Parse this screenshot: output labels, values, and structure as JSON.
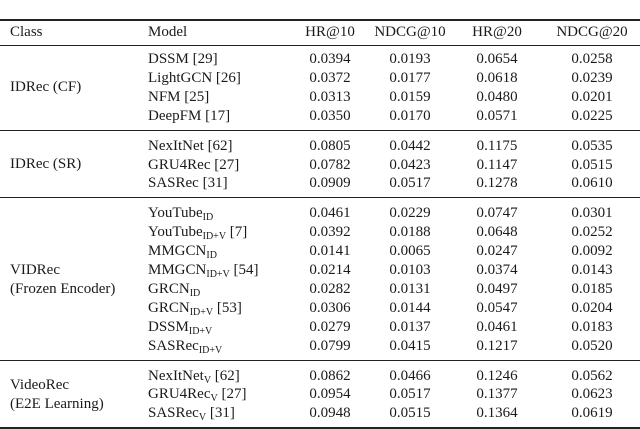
{
  "header": {
    "class": "Class",
    "model": "Model",
    "metrics": [
      "HR@10",
      "NDCG@10",
      "HR@20",
      "NDCG@20"
    ]
  },
  "groups": [
    {
      "class_lines": [
        "IDRec (CF)"
      ],
      "rows": [
        {
          "name": "DSSM",
          "sub": "",
          "ref": "[29]",
          "values": [
            "0.0394",
            "0.0193",
            "0.0654",
            "0.0258"
          ]
        },
        {
          "name": "LightGCN",
          "sub": "",
          "ref": "[26]",
          "values": [
            "0.0372",
            "0.0177",
            "0.0618",
            "0.0239"
          ]
        },
        {
          "name": "NFM",
          "sub": "",
          "ref": "[25]",
          "values": [
            "0.0313",
            "0.0159",
            "0.0480",
            "0.0201"
          ]
        },
        {
          "name": "DeepFM",
          "sub": "",
          "ref": "[17]",
          "values": [
            "0.0350",
            "0.0170",
            "0.0571",
            "0.0225"
          ]
        }
      ]
    },
    {
      "class_lines": [
        "IDRec (SR)"
      ],
      "rows": [
        {
          "name": "NexItNet",
          "sub": "",
          "ref": "[62]",
          "values": [
            "0.0805",
            "0.0442",
            "0.1175",
            "0.0535"
          ]
        },
        {
          "name": "GRU4Rec",
          "sub": "",
          "ref": "[27]",
          "values": [
            "0.0782",
            "0.0423",
            "0.1147",
            "0.0515"
          ]
        },
        {
          "name": "SASRec",
          "sub": "",
          "ref": "[31]",
          "values": [
            "0.0909",
            "0.0517",
            "0.1278",
            "0.0610"
          ]
        }
      ]
    },
    {
      "class_lines": [
        "VIDRec",
        "(Frozen Encoder)"
      ],
      "rows": [
        {
          "name": "YouTube",
          "sub": "ID",
          "ref": "",
          "values": [
            "0.0461",
            "0.0229",
            "0.0747",
            "0.0301"
          ]
        },
        {
          "name": "YouTube",
          "sub": "ID+V",
          "ref": "[7]",
          "values": [
            "0.0392",
            "0.0188",
            "0.0648",
            "0.0252"
          ]
        },
        {
          "name": "MMGCN",
          "sub": "ID",
          "ref": "",
          "values": [
            "0.0141",
            "0.0065",
            "0.0247",
            "0.0092"
          ]
        },
        {
          "name": "MMGCN",
          "sub": "ID+V",
          "ref": "[54]",
          "values": [
            "0.0214",
            "0.0103",
            "0.0374",
            "0.0143"
          ]
        },
        {
          "name": "GRCN",
          "sub": "ID",
          "ref": "",
          "values": [
            "0.0282",
            "0.0131",
            "0.0497",
            "0.0185"
          ]
        },
        {
          "name": "GRCN",
          "sub": "ID+V",
          "ref": "[53]",
          "values": [
            "0.0306",
            "0.0144",
            "0.0547",
            "0.0204"
          ]
        },
        {
          "name": "DSSM",
          "sub": "ID+V",
          "ref": "",
          "values": [
            "0.0279",
            "0.0137",
            "0.0461",
            "0.0183"
          ]
        },
        {
          "name": "SASRec",
          "sub": "ID+V",
          "ref": "",
          "values": [
            "0.0799",
            "0.0415",
            "0.1217",
            "0.0520"
          ]
        }
      ]
    },
    {
      "class_lines": [
        "VideoRec",
        "(E2E Learning)"
      ],
      "rows": [
        {
          "name": "NexItNet",
          "sub": "V",
          "ref": "[62]",
          "values": [
            "0.0862",
            "0.0466",
            "0.1246",
            "0.0562"
          ]
        },
        {
          "name": "GRU4Rec",
          "sub": "V",
          "ref": "[27]",
          "values": [
            "0.0954",
            "0.0517",
            "0.1377",
            "0.0623"
          ]
        },
        {
          "name": "SASRec",
          "sub": "V",
          "ref": "[31]",
          "values": [
            "0.0948",
            "0.0515",
            "0.1364",
            "0.0619"
          ]
        }
      ]
    }
  ]
}
